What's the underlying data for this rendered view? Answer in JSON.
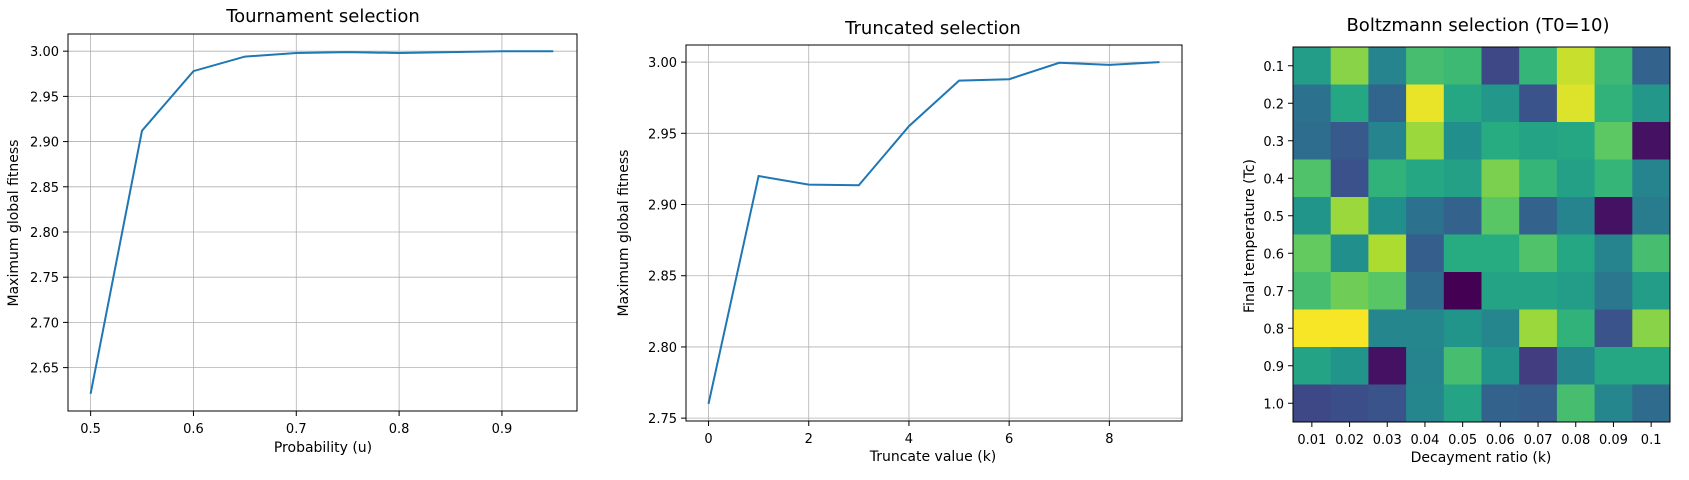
{
  "chart_data": [
    {
      "type": "line",
      "title": "Tournament selection",
      "xlabel": "Probability (u)",
      "ylabel": "Maximum global fitness",
      "x": [
        0.5,
        0.55,
        0.6,
        0.65,
        0.7,
        0.75,
        0.8,
        0.85,
        0.9,
        0.95
      ],
      "y": [
        2.621,
        2.912,
        2.978,
        2.994,
        2.998,
        2.999,
        2.998,
        2.999,
        3.0,
        3.0
      ],
      "xticks": [
        0.5,
        0.6,
        0.7,
        0.8,
        0.9
      ],
      "xtick_labels": [
        "0.5",
        "0.6",
        "0.7",
        "0.8",
        "0.9"
      ],
      "yticks": [
        2.65,
        2.7,
        2.75,
        2.8,
        2.85,
        2.9,
        2.95,
        3.0
      ],
      "ytick_labels": [
        "2.65",
        "2.70",
        "2.75",
        "2.80",
        "2.85",
        "2.90",
        "2.95",
        "3.00"
      ],
      "xlim": [
        0.478,
        0.973
      ],
      "ylim": [
        2.602,
        3.019
      ],
      "grid": true,
      "color": "#1f77b4"
    },
    {
      "type": "line",
      "title": "Truncated selection",
      "xlabel": "Truncate value (k)",
      "ylabel": "Maximum global fitness",
      "x": [
        0,
        1,
        2,
        3,
        4,
        5,
        6,
        7,
        8,
        9
      ],
      "y": [
        2.76,
        2.92,
        2.914,
        2.9135,
        2.955,
        2.987,
        2.988,
        2.9995,
        2.998,
        3.0
      ],
      "xticks": [
        0,
        2,
        4,
        6,
        8
      ],
      "xtick_labels": [
        "0",
        "2",
        "4",
        "6",
        "8"
      ],
      "yticks": [
        2.75,
        2.8,
        2.85,
        2.9,
        2.95,
        3.0
      ],
      "ytick_labels": [
        "2.75",
        "2.80",
        "2.85",
        "2.90",
        "2.95",
        "3.00"
      ],
      "xlim": [
        -0.45,
        9.45
      ],
      "ylim": [
        2.748,
        3.012
      ],
      "grid": true,
      "color": "#1f77b4"
    },
    {
      "type": "heatmap",
      "title": "Boltzmann selection (T0=10)",
      "xlabel": "Decayment ratio (k)",
      "ylabel": "Final temperature (Tc)",
      "x_categories": [
        "0.01",
        "0.02",
        "0.03",
        "0.04",
        "0.05",
        "0.06",
        "0.07",
        "0.08",
        "0.09",
        "0.1"
      ],
      "y_categories": [
        "0.1",
        "0.2",
        "0.3",
        "0.4",
        "0.5",
        "0.6",
        "0.7",
        "0.8",
        "0.9",
        "1.0"
      ],
      "colormap": "viridis",
      "values": [
        [
          0.55,
          0.82,
          0.45,
          0.7,
          0.68,
          0.22,
          0.66,
          0.92,
          0.68,
          0.32
        ],
        [
          0.38,
          0.6,
          0.33,
          0.97,
          0.6,
          0.53,
          0.26,
          0.95,
          0.65,
          0.53
        ],
        [
          0.36,
          0.28,
          0.45,
          0.85,
          0.5,
          0.62,
          0.58,
          0.6,
          0.75,
          0.05
        ],
        [
          0.72,
          0.25,
          0.65,
          0.6,
          0.57,
          0.8,
          0.66,
          0.57,
          0.66,
          0.45
        ],
        [
          0.52,
          0.85,
          0.5,
          0.38,
          0.32,
          0.74,
          0.32,
          0.45,
          0.05,
          0.42
        ],
        [
          0.76,
          0.5,
          0.88,
          0.3,
          0.62,
          0.62,
          0.72,
          0.6,
          0.45,
          0.7
        ],
        [
          0.7,
          0.78,
          0.74,
          0.35,
          0.0,
          0.58,
          0.58,
          0.55,
          0.4,
          0.55
        ],
        [
          0.99,
          0.99,
          0.46,
          0.46,
          0.52,
          0.46,
          0.85,
          0.65,
          0.26,
          0.82
        ],
        [
          0.58,
          0.52,
          0.05,
          0.45,
          0.7,
          0.52,
          0.18,
          0.46,
          0.6,
          0.6
        ],
        [
          0.22,
          0.24,
          0.26,
          0.46,
          0.58,
          0.32,
          0.3,
          0.7,
          0.46,
          0.35
        ]
      ]
    }
  ]
}
